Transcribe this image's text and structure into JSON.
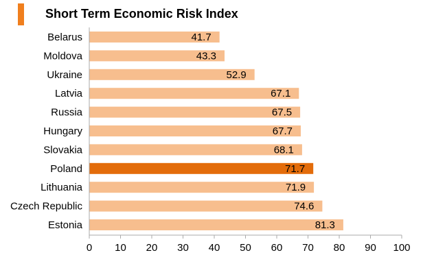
{
  "colors": {
    "accent": "#f07f1e",
    "bar": "#f7be8e",
    "highlight_bar": "#e36c0a",
    "axis": "#aaaaaa"
  },
  "chart_data": {
    "type": "bar",
    "orientation": "horizontal",
    "title": "Short Term Economic Risk Index",
    "categories": [
      "Belarus",
      "Moldova",
      "Ukraine",
      "Latvia",
      "Russia",
      "Hungary",
      "Slovakia",
      "Poland",
      "Lithuania",
      "Czech Republic",
      "Estonia"
    ],
    "values": [
      41.7,
      43.3,
      52.9,
      67.1,
      67.5,
      67.7,
      68.1,
      71.7,
      71.9,
      74.6,
      81.3
    ],
    "value_labels": [
      "41.7",
      "43.3",
      "52.9",
      "67.1",
      "67.5",
      "67.7",
      "68.1",
      "71.7",
      "71.9",
      "74.6",
      "81.3"
    ],
    "highlight": "Poland",
    "xlim": [
      0,
      100
    ],
    "xticks": [
      0,
      10,
      20,
      30,
      40,
      50,
      60,
      70,
      80,
      90,
      100
    ],
    "xtick_labels": [
      "0",
      "10",
      "20",
      "30",
      "40",
      "50",
      "60",
      "70",
      "80",
      "90",
      "100"
    ],
    "grid": false,
    "legend": "none"
  }
}
